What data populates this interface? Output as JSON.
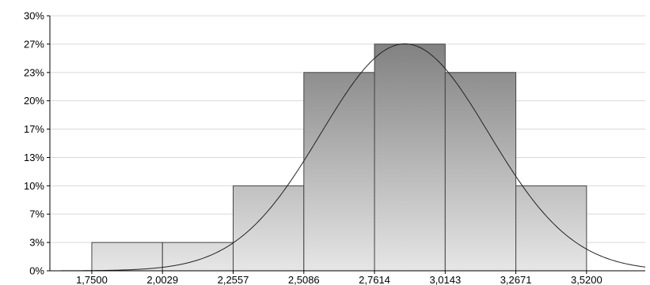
{
  "chart_data": {
    "type": "bar",
    "title": "",
    "xlabel": "",
    "ylabel": "",
    "categories": [
      "1,7500",
      "2,0029",
      "2,2557",
      "2,5086",
      "2,7614",
      "3,0143",
      "3,2671",
      "3,5200"
    ],
    "x_ticks": [
      1.75,
      2.0029,
      2.2557,
      2.5086,
      2.7614,
      3.0143,
      3.2671,
      3.52
    ],
    "xlim": [
      1.6,
      3.73
    ],
    "ylim": [
      0,
      30
    ],
    "y_ticks": [
      0,
      3.33,
      6.67,
      10,
      13.33,
      16.67,
      20,
      23.33,
      26.67,
      30
    ],
    "y_tick_labels": [
      "0%",
      "3%",
      "7%",
      "10%",
      "13%",
      "17%",
      "20%",
      "23%",
      "27%",
      "30%"
    ],
    "bins": [
      {
        "from": 1.75,
        "to": 2.0029,
        "value": 3.33
      },
      {
        "from": 2.0029,
        "to": 2.2557,
        "value": 3.33
      },
      {
        "from": 2.2557,
        "to": 2.5086,
        "value": 10
      },
      {
        "from": 2.5086,
        "to": 2.7614,
        "value": 23.33
      },
      {
        "from": 2.7614,
        "to": 3.0143,
        "value": 26.67
      },
      {
        "from": 3.0143,
        "to": 3.2671,
        "value": 23.33
      },
      {
        "from": 3.2671,
        "to": 3.52,
        "value": 10
      }
    ],
    "normal_curve": {
      "mean": 2.87,
      "sd": 0.3,
      "peak": 26.7
    },
    "grid": true,
    "colors": {
      "bar_top": "#808080",
      "bar_bottom": "#e6e6e6",
      "bar_stroke": "#444444",
      "curve": "#222222",
      "grid": "#d9d9d9",
      "axis": "#000000"
    }
  }
}
